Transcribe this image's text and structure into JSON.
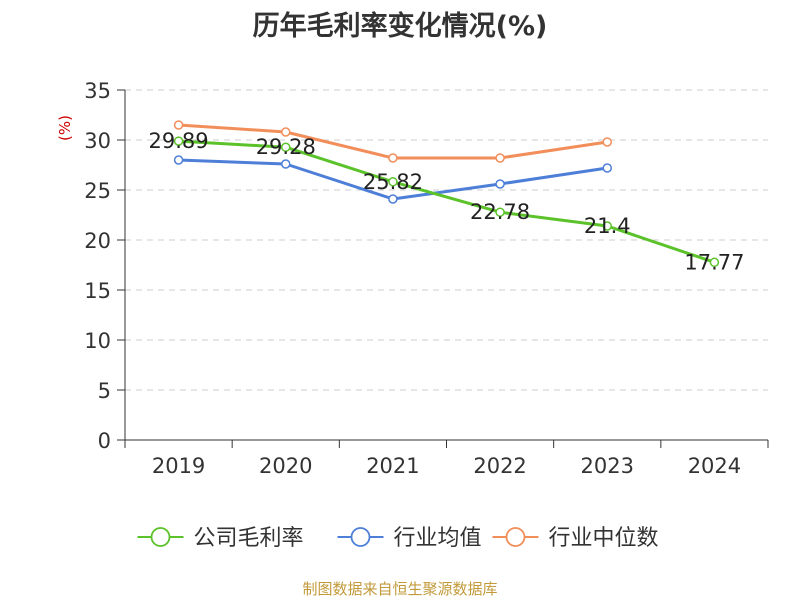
{
  "chart_data": {
    "type": "line",
    "title": "历年毛利率变化情况(%)",
    "ylabel": "(%)",
    "categories": [
      "2019",
      "2020",
      "2021",
      "2022",
      "2023",
      "2024"
    ],
    "ylim": [
      0,
      35
    ],
    "yticks": [
      0,
      5,
      10,
      15,
      20,
      25,
      30,
      35
    ],
    "grid": true,
    "legend_position": "bottom",
    "series": [
      {
        "name": "公司毛利率",
        "color": "#5bc22a",
        "values": [
          29.89,
          29.28,
          25.82,
          22.78,
          21.4,
          17.77
        ],
        "labels": [
          "29.89",
          "29.28",
          "25.82",
          "22.78",
          "21.4",
          "17.77"
        ]
      },
      {
        "name": "行业均值",
        "color": "#4e7fd8",
        "values": [
          28.0,
          27.6,
          24.1,
          25.6,
          27.2,
          null
        ]
      },
      {
        "name": "行业中位数",
        "color": "#f28e5a",
        "values": [
          31.5,
          30.8,
          28.2,
          28.2,
          29.8,
          null
        ]
      }
    ]
  },
  "source": "制图数据来自恒生聚源数据库"
}
